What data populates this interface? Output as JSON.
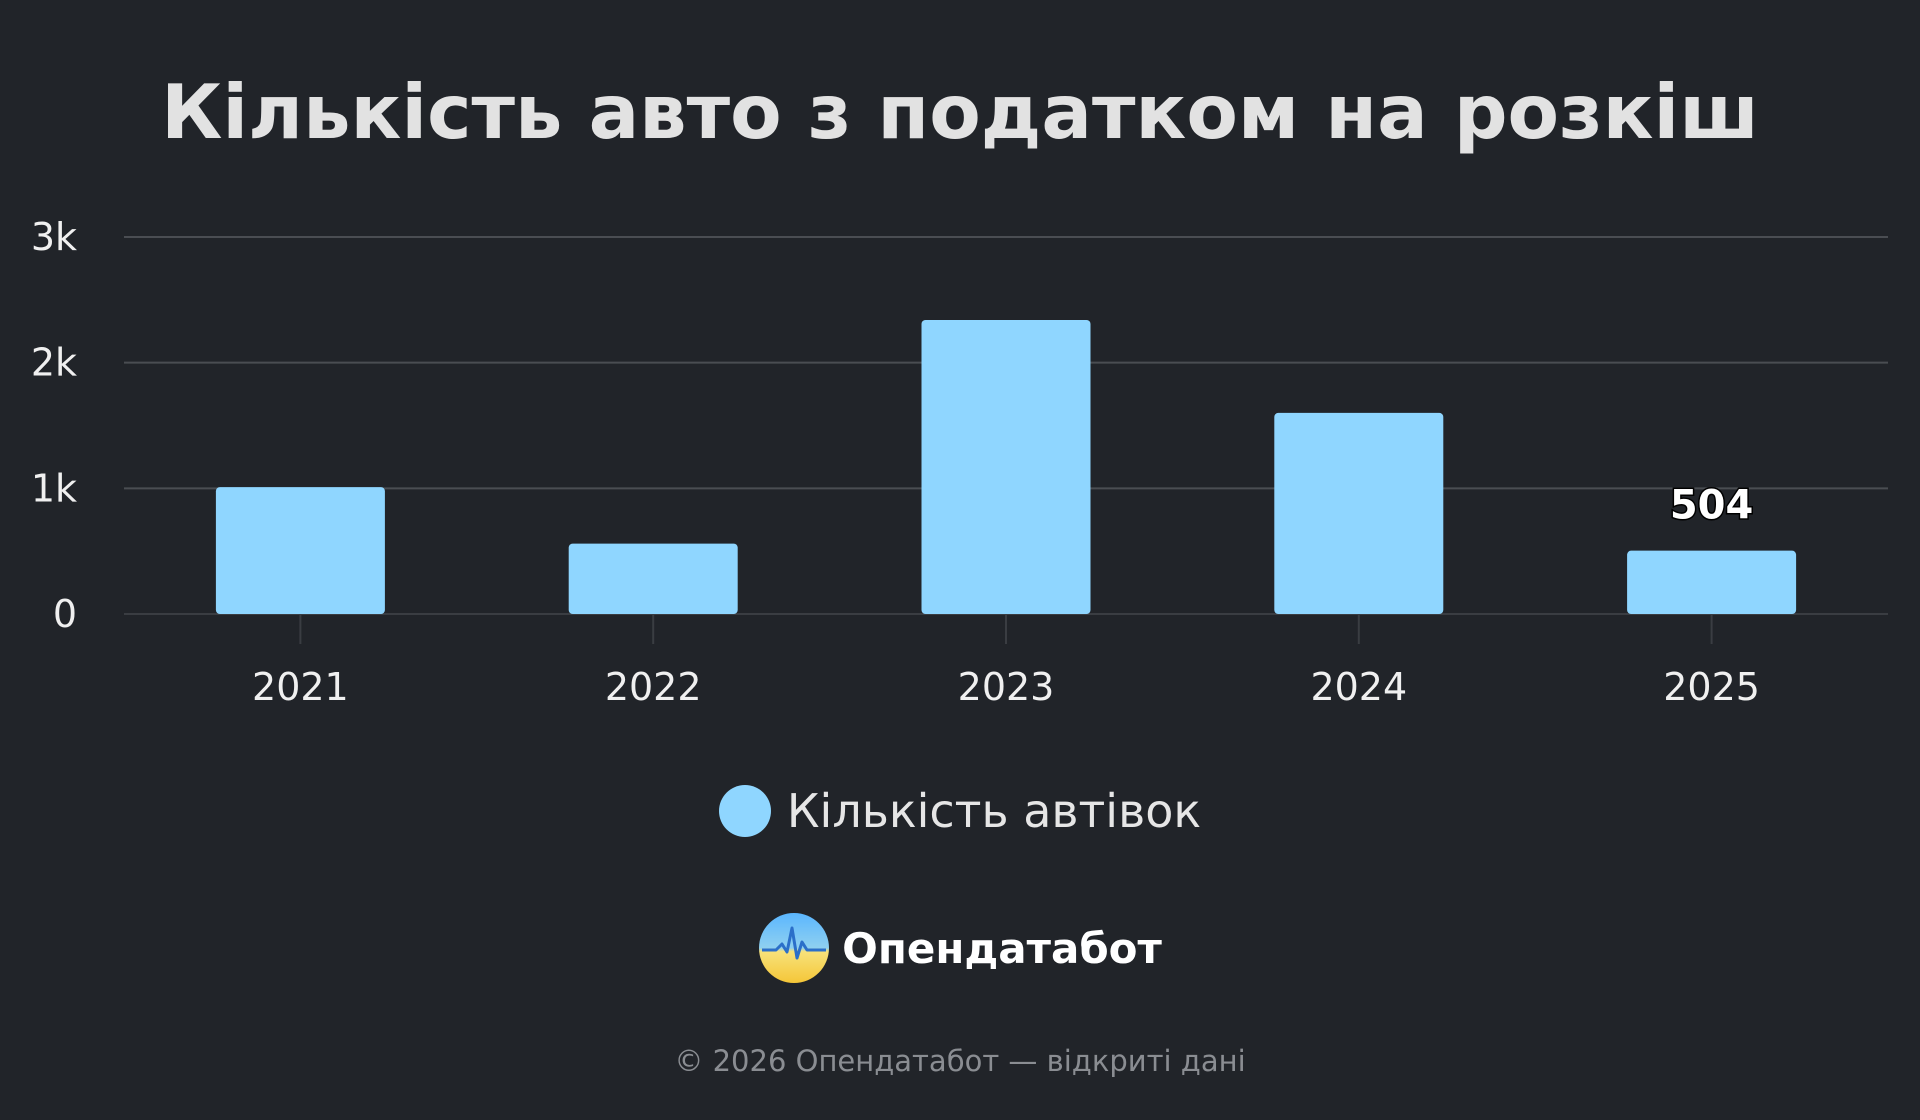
{
  "chart_data": {
    "type": "bar",
    "title": "Кількість авто з податком на розкіш",
    "categories": [
      "2021",
      "2022",
      "2023",
      "2024",
      "2025"
    ],
    "series": [
      {
        "name": "Кількість автівок",
        "values": [
          1010,
          560,
          2340,
          1600,
          504
        ],
        "color": "#8fd6ff"
      }
    ],
    "ylim": [
      0,
      3000
    ],
    "yticks": [
      0,
      1000,
      2000,
      3000
    ],
    "ytick_labels": [
      "0",
      "1k",
      "2k",
      "3k"
    ],
    "data_labels": [
      {
        "category": "2025",
        "text": "504"
      }
    ],
    "grid": true,
    "legend_position": "bottom"
  },
  "brand": {
    "name": "Опендатабот"
  },
  "footer": {
    "text": "© 2026 Опендатабот — відкриті дані"
  },
  "colors": {
    "background": "#212429",
    "bar": "#8fd6ff",
    "grid": "#4a4d52"
  }
}
